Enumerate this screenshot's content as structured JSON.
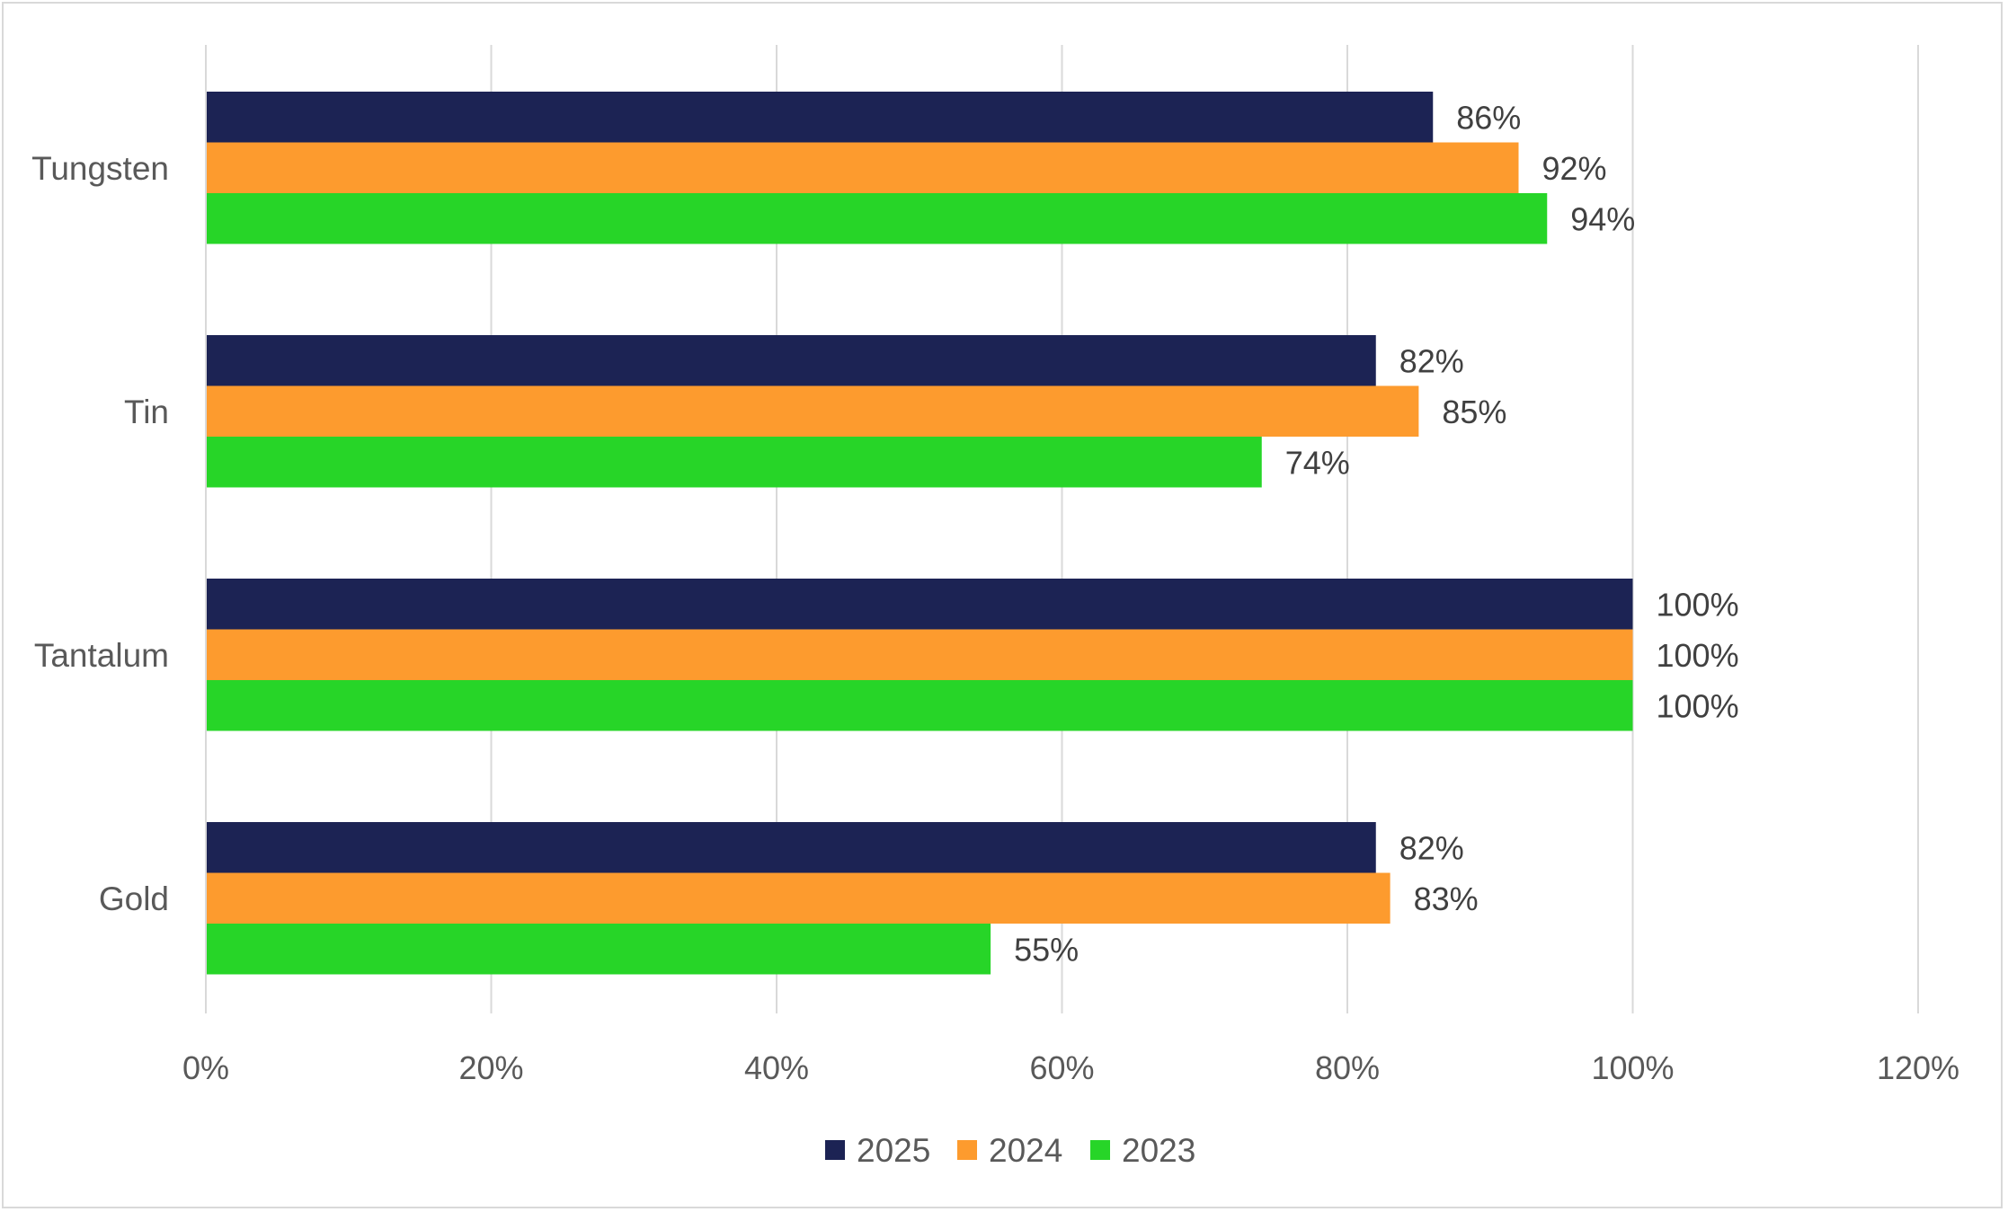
{
  "chart_data": {
    "type": "bar",
    "orientation": "horizontal",
    "categories": [
      "Tungsten",
      "Tin",
      "Tantalum",
      "Gold"
    ],
    "series": [
      {
        "name": "2025",
        "color": "#1c2354",
        "values": [
          86,
          82,
          100,
          82
        ],
        "labels": [
          "86%",
          "82%",
          "100%",
          "82%"
        ]
      },
      {
        "name": "2024",
        "color": "#fd9b2e",
        "values": [
          92,
          85,
          100,
          83
        ],
        "labels": [
          "92%",
          "85%",
          "100%",
          "83%"
        ]
      },
      {
        "name": "2023",
        "color": "#27d528",
        "values": [
          94,
          74,
          100,
          55
        ],
        "labels": [
          "94%",
          "74%",
          "100%",
          "55%"
        ]
      }
    ],
    "xlim": [
      0,
      120
    ],
    "x_ticks": [
      0,
      20,
      40,
      60,
      80,
      100,
      120
    ],
    "x_tick_labels": [
      "0%",
      "20%",
      "40%",
      "60%",
      "80%",
      "100%",
      "120%"
    ],
    "grid": true,
    "legend_position": "bottom",
    "title": "",
    "xlabel": "",
    "ylabel": ""
  }
}
